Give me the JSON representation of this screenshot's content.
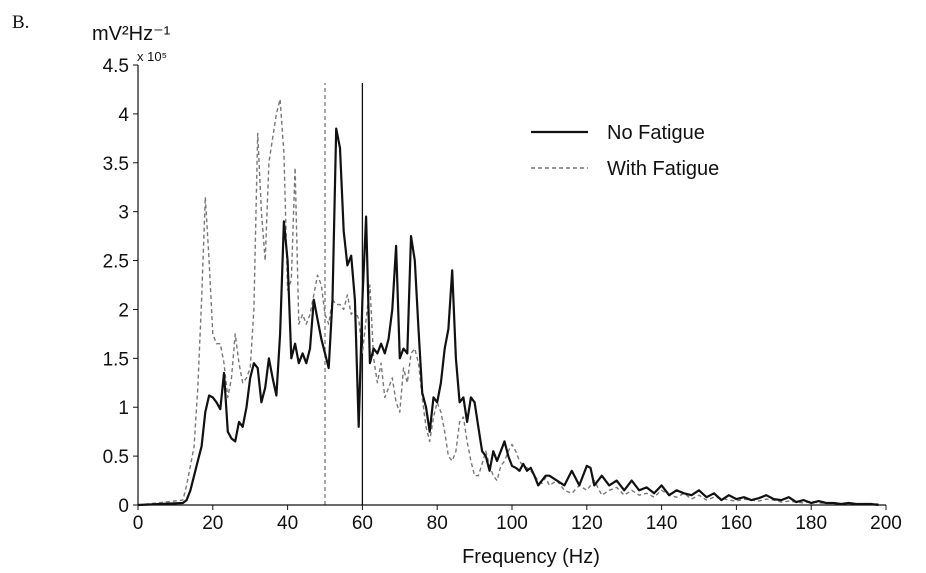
{
  "figure": {
    "panel_label": "B.",
    "unit_label": "mV²Hz⁻¹",
    "multiplier_label": "x 10⁵"
  },
  "chart_data": {
    "type": "line",
    "title": "",
    "xlabel": "Frequency (Hz)",
    "ylabel": "",
    "xlim": [
      0,
      200
    ],
    "ylim": [
      0,
      4.5
    ],
    "x_ticks": [
      0,
      20,
      40,
      60,
      80,
      100,
      120,
      140,
      160,
      180,
      200
    ],
    "y_ticks": [
      0,
      0.5,
      1,
      1.5,
      2,
      2.5,
      3,
      3.5,
      4,
      4.5
    ],
    "y_tick_labels": [
      "0",
      "0.5",
      "1",
      "1.5",
      "2",
      "2.5",
      "3",
      "3.5",
      "4",
      "4.5"
    ],
    "legend_position": "top-right",
    "grid": false,
    "series": [
      {
        "name": "No Fatigue",
        "style": "solid",
        "color": "#111111",
        "x": [
          0,
          12,
          13,
          14,
          15,
          16,
          17,
          18,
          19,
          20,
          21,
          22,
          23,
          24,
          25,
          26,
          27,
          28,
          29,
          30,
          31,
          32,
          33,
          34,
          35,
          36,
          37,
          38,
          39,
          40,
          41,
          42,
          43,
          44,
          45,
          46,
          47,
          48,
          49,
          50,
          51,
          52,
          53,
          54,
          55,
          56,
          57,
          58,
          59,
          60,
          61,
          62,
          63,
          64,
          65,
          66,
          67,
          68,
          69,
          70,
          71,
          72,
          73,
          74,
          75,
          76,
          77,
          78,
          79,
          80,
          81,
          82,
          83,
          84,
          85,
          86,
          87,
          88,
          89,
          90,
          91,
          92,
          93,
          94,
          95,
          96,
          97,
          98,
          99,
          100,
          101,
          102,
          103,
          104,
          105,
          106,
          107,
          108,
          109,
          110,
          112,
          114,
          116,
          118,
          120,
          121,
          122,
          124,
          126,
          128,
          130,
          132,
          134,
          136,
          138,
          140,
          142,
          144,
          146,
          148,
          150,
          152,
          154,
          156,
          158,
          160,
          162,
          164,
          166,
          168,
          170,
          172,
          174,
          176,
          178,
          180,
          182,
          184,
          186,
          188,
          190,
          192,
          194,
          196,
          198
        ],
        "y": [
          0,
          0.02,
          0.05,
          0.15,
          0.3,
          0.45,
          0.6,
          0.95,
          1.12,
          1.1,
          1.05,
          0.98,
          1.35,
          0.75,
          0.68,
          0.65,
          0.85,
          0.8,
          1.0,
          1.3,
          1.45,
          1.4,
          1.05,
          1.2,
          1.5,
          1.3,
          1.12,
          1.75,
          2.9,
          2.5,
          1.5,
          1.65,
          1.45,
          1.55,
          1.45,
          1.6,
          2.1,
          1.9,
          1.7,
          1.55,
          1.4,
          2.1,
          3.85,
          3.65,
          2.8,
          2.45,
          2.55,
          2.1,
          0.8,
          2.1,
          2.95,
          1.45,
          1.6,
          1.55,
          1.65,
          1.55,
          1.7,
          2.0,
          2.65,
          1.5,
          1.6,
          1.55,
          2.75,
          2.5,
          1.8,
          1.15,
          1.0,
          0.75,
          1.1,
          1.05,
          1.25,
          1.6,
          1.8,
          2.4,
          1.5,
          1.05,
          1.1,
          0.85,
          1.1,
          1.05,
          0.8,
          0.55,
          0.5,
          0.35,
          0.55,
          0.45,
          0.55,
          0.65,
          0.5,
          0.4,
          0.38,
          0.35,
          0.42,
          0.35,
          0.38,
          0.3,
          0.2,
          0.25,
          0.3,
          0.3,
          0.25,
          0.2,
          0.35,
          0.2,
          0.4,
          0.38,
          0.2,
          0.3,
          0.2,
          0.25,
          0.15,
          0.25,
          0.15,
          0.18,
          0.12,
          0.2,
          0.1,
          0.15,
          0.12,
          0.1,
          0.15,
          0.08,
          0.12,
          0.05,
          0.1,
          0.06,
          0.08,
          0.05,
          0.07,
          0.1,
          0.06,
          0.05,
          0.08,
          0.03,
          0.05,
          0.02,
          0.04,
          0.02,
          0.02,
          0.01,
          0.02,
          0.01,
          0.01,
          0.01,
          0
        ]
      },
      {
        "name": "With Fatigue",
        "style": "dashed",
        "color": "#777777",
        "x": [
          0,
          12,
          13,
          14,
          15,
          16,
          17,
          18,
          19,
          20,
          21,
          22,
          23,
          24,
          25,
          26,
          27,
          28,
          29,
          30,
          31,
          32,
          33,
          34,
          35,
          36,
          37,
          38,
          39,
          40,
          41,
          42,
          43,
          44,
          45,
          46,
          47,
          48,
          49,
          50,
          51,
          52,
          53,
          54,
          55,
          56,
          57,
          58,
          59,
          60,
          61,
          62,
          63,
          64,
          65,
          66,
          67,
          68,
          69,
          70,
          71,
          72,
          73,
          74,
          75,
          76,
          77,
          78,
          79,
          80,
          81,
          82,
          83,
          84,
          85,
          86,
          87,
          88,
          89,
          90,
          91,
          92,
          93,
          94,
          95,
          96,
          97,
          98,
          99,
          100,
          101,
          102,
          103,
          104,
          105,
          106,
          107,
          108,
          109,
          110,
          112,
          114,
          116,
          118,
          120,
          122,
          124,
          126,
          128,
          130,
          132,
          134,
          136,
          138,
          140,
          142,
          144,
          146,
          148,
          150,
          152,
          154,
          156,
          158,
          160,
          162,
          164,
          166,
          168,
          170,
          172,
          174,
          176,
          178,
          180,
          182,
          184,
          186,
          188,
          190,
          192,
          194,
          196,
          198
        ],
        "y": [
          0,
          0.05,
          0.2,
          0.4,
          0.6,
          1.2,
          2.1,
          3.15,
          2.5,
          1.75,
          1.65,
          1.65,
          1.45,
          1.1,
          1.3,
          1.75,
          1.45,
          1.25,
          1.3,
          1.4,
          2.0,
          3.8,
          3.0,
          2.5,
          3.5,
          3.75,
          4.0,
          4.15,
          3.6,
          2.2,
          2.3,
          3.45,
          1.85,
          1.95,
          1.85,
          1.95,
          2.15,
          2.35,
          2.25,
          1.95,
          1.85,
          2.1,
          2.05,
          2.05,
          2.0,
          2.15,
          1.95,
          2.0,
          1.9,
          1.55,
          1.9,
          2.25,
          1.5,
          1.25,
          1.45,
          1.1,
          1.2,
          1.3,
          1.05,
          0.95,
          1.4,
          1.25,
          1.55,
          1.6,
          1.45,
          1.1,
          0.8,
          0.65,
          0.9,
          1.05,
          0.95,
          0.75,
          0.5,
          0.45,
          0.55,
          0.85,
          0.9,
          0.65,
          0.45,
          0.3,
          0.3,
          0.42,
          0.55,
          0.4,
          0.3,
          0.25,
          0.4,
          0.45,
          0.55,
          0.62,
          0.55,
          0.45,
          0.4,
          0.38,
          0.35,
          0.3,
          0.25,
          0.22,
          0.28,
          0.2,
          0.25,
          0.15,
          0.12,
          0.2,
          0.15,
          0.25,
          0.1,
          0.15,
          0.18,
          0.1,
          0.15,
          0.1,
          0.12,
          0.08,
          0.15,
          0.1,
          0.08,
          0.12,
          0.06,
          0.1,
          0.05,
          0.08,
          0.07,
          0.05,
          0.04,
          0.06,
          0.05,
          0.04,
          0.06,
          0.05,
          0.03,
          0.04,
          0.03,
          0.02,
          0.04,
          0.02,
          0.02,
          0.02,
          0.01,
          0.02,
          0.01,
          0.01,
          0.01,
          0.01
        ]
      }
    ],
    "reference_lines": [
      {
        "x": 60,
        "style": "solid",
        "color": "#111111"
      },
      {
        "x": 50,
        "style": "dashed",
        "color": "#777777"
      }
    ]
  }
}
